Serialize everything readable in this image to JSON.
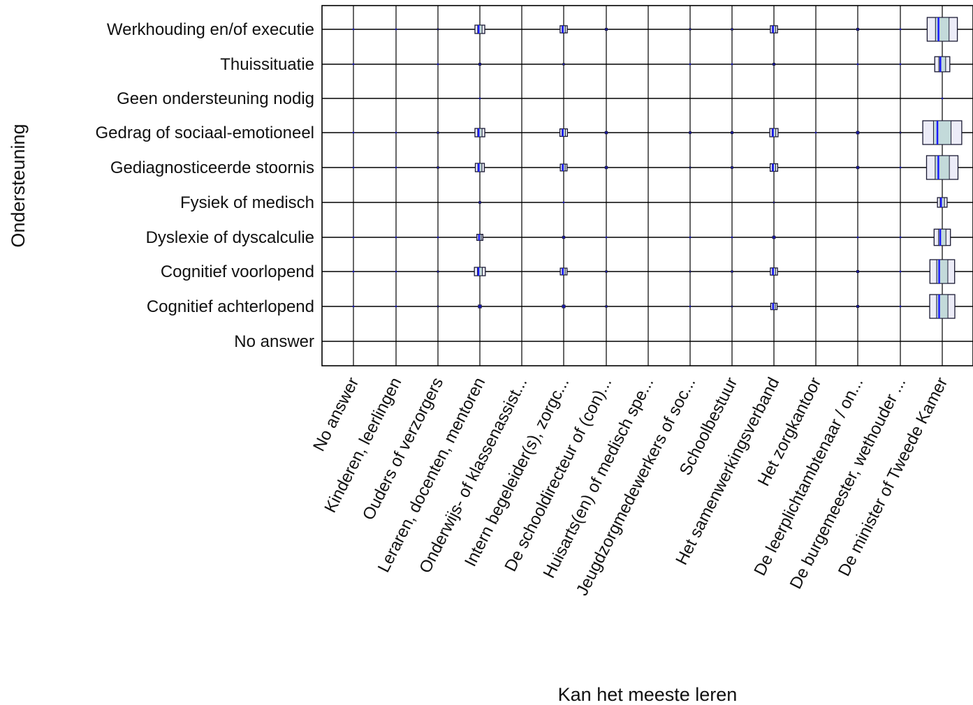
{
  "chart_data": {
    "type": "heatmap",
    "xlabel": "Kan het meeste leren",
    "ylabel": "Ondersteuning",
    "x_categories": [
      "No answer",
      "Kinderen, leerlingen",
      "Ouders of verzorgers",
      "Leraren, docenten, mentoren",
      "Onderwijs- of klassenassist...",
      "Intern begeleider(s), zorgc...",
      "De schooldirecteur of (con)...",
      "Huisarts(en) of medisch spe...",
      "Jeugdzorgmedewerkers of soc...",
      "Schoolbestuur",
      "Het samenwerkingsverband",
      "Het zorgkantoor",
      "De leerplichtambtenaar / on...",
      "De burgemeester, wethouder ...",
      "De minister of Tweede Kamer"
    ],
    "y_categories": [
      "Werkhouding en/of executie",
      "Thuissituatie",
      "Geen ondersteuning nodig",
      "Gedrag of sociaal-emotioneel",
      "Gediagnosticeerde stoornis",
      "Fysiek of medisch",
      "Dyslexie of dyscalculie",
      "Cognitief voorlopend",
      "Cognitief achterlopend",
      "No answer"
    ],
    "cells": [
      [
        0.5,
        0.4,
        0.6,
        2.6,
        0,
        1.9,
        1.0,
        0,
        0.7,
        0.8,
        1.9,
        0,
        1.0,
        0.4,
        7.2
      ],
      [
        0.3,
        0,
        0.3,
        1.0,
        0,
        0.8,
        0,
        0,
        0.3,
        0.3,
        1.0,
        0,
        0.4,
        0.3,
        3.6
      ],
      [
        0,
        0,
        0,
        0.3,
        0,
        0,
        0,
        0,
        0,
        0,
        0,
        0,
        0,
        0,
        0.5
      ],
      [
        0.5,
        0.5,
        0.8,
        2.6,
        0,
        2.0,
        1.1,
        0,
        0.9,
        1.0,
        2.2,
        0.3,
        1.2,
        0.6,
        9.3
      ],
      [
        0.5,
        0.4,
        0.8,
        2.4,
        0,
        1.8,
        1.1,
        0,
        0.6,
        0.9,
        2.0,
        0,
        1.1,
        0.5,
        7.5
      ],
      [
        0,
        0,
        0,
        0.9,
        0,
        0.4,
        0,
        0,
        0,
        0,
        0.6,
        0,
        0,
        0,
        2.3
      ],
      [
        0.3,
        0.3,
        0.3,
        1.6,
        0,
        1.1,
        0.4,
        0,
        0.4,
        0.5,
        1.2,
        0,
        0.5,
        0.3,
        3.9
      ],
      [
        0.5,
        0.5,
        0.7,
        2.9,
        0,
        1.8,
        0.8,
        0,
        0.6,
        0.8,
        1.9,
        0,
        1.0,
        0.5,
        5.9
      ],
      [
        0.3,
        0.3,
        0.6,
        1.4,
        0,
        1.3,
        0.8,
        0,
        0.5,
        0.6,
        1.7,
        0,
        1.0,
        0.4,
        6.0
      ],
      [
        0,
        0,
        0,
        0,
        0,
        0,
        0,
        0,
        0,
        0,
        0,
        0,
        0,
        0,
        0
      ]
    ],
    "colors": {
      "box_fill": "#ececf8",
      "box_inner_fill": "#c3dada",
      "box_stroke": "#1a1a33",
      "median": "#1a1aff",
      "dot": "#1a1aa6",
      "grid": "#000000"
    }
  }
}
